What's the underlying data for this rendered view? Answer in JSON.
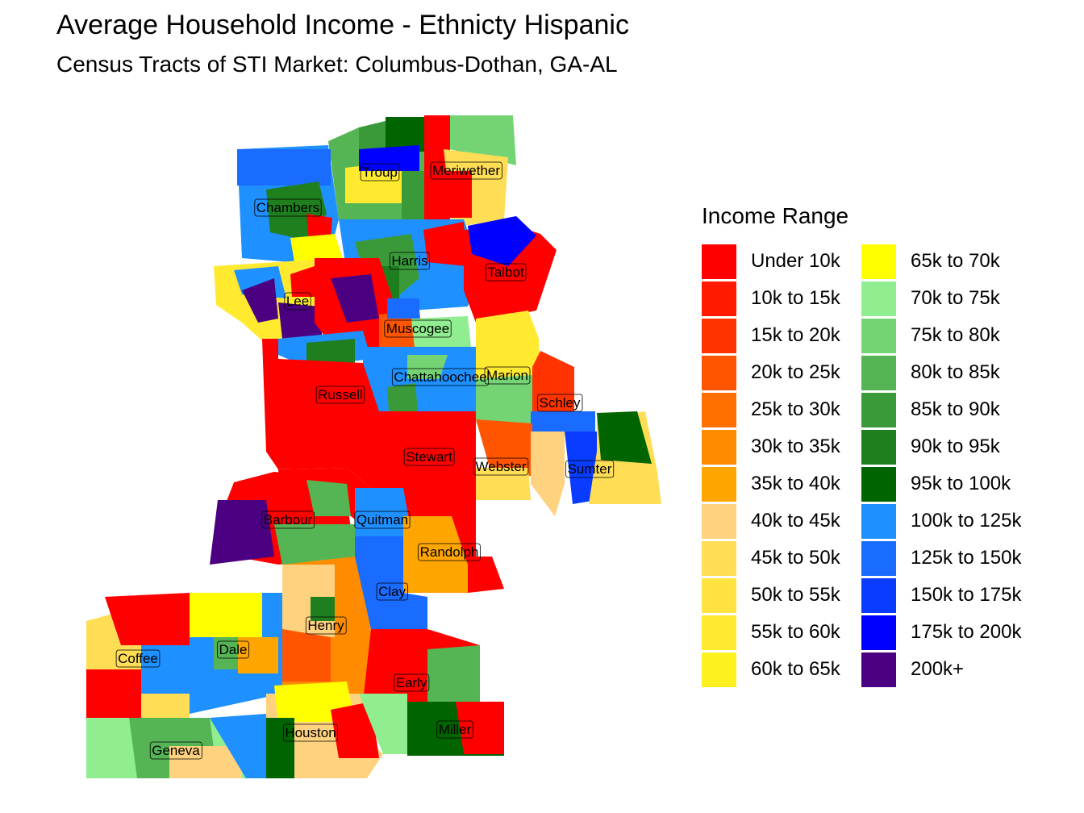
{
  "title": "Average Household Income - Ethnicty Hispanic",
  "subtitle": "Census Tracts of STI Market: Columbus-Dothan,  GA-AL",
  "legend": {
    "title": "Income Range",
    "items": [
      {
        "label": "Under 10k",
        "color": "#ff0000"
      },
      {
        "label": "10k to 15k",
        "color": "#ff1a00"
      },
      {
        "label": "15k to 20k",
        "color": "#ff3300"
      },
      {
        "label": "20k to 25k",
        "color": "#ff5500"
      },
      {
        "label": "25k to 30k",
        "color": "#ff7000"
      },
      {
        "label": "30k to 35k",
        "color": "#ff8c00"
      },
      {
        "label": "35k to 40k",
        "color": "#ffa500"
      },
      {
        "label": "40k to 45k",
        "color": "#ffd280"
      },
      {
        "label": "45k to 50k",
        "color": "#ffdd55"
      },
      {
        "label": "50k to 55k",
        "color": "#ffe340"
      },
      {
        "label": "55k to 60k",
        "color": "#ffea30"
      },
      {
        "label": "60k to 65k",
        "color": "#fff020"
      },
      {
        "label": "65k to 70k",
        "color": "#ffff00"
      },
      {
        "label": "70k to 75k",
        "color": "#90ee90"
      },
      {
        "label": "75k to 80k",
        "color": "#74d474"
      },
      {
        "label": "80k to 85k",
        "color": "#55b555"
      },
      {
        "label": "85k to 90k",
        "color": "#3a9a3a"
      },
      {
        "label": "90k to 95k",
        "color": "#1f7f1f"
      },
      {
        "label": "95k to 100k",
        "color": "#006400"
      },
      {
        "label": "100k to 125k",
        "color": "#1e90ff"
      },
      {
        "label": "125k to 150k",
        "color": "#1a6bff"
      },
      {
        "label": "150k to 175k",
        "color": "#0a3cff"
      },
      {
        "label": "175k to 200k",
        "color": "#0000ff"
      },
      {
        "label": "200k+",
        "color": "#4b0082"
      }
    ]
  },
  "counties": [
    {
      "name": "Troup"
    },
    {
      "name": "Meriwether"
    },
    {
      "name": "Chambers"
    },
    {
      "name": "Harris"
    },
    {
      "name": "Talbot"
    },
    {
      "name": "Lee"
    },
    {
      "name": "Muscogee"
    },
    {
      "name": "Chattahoochee"
    },
    {
      "name": "Marion"
    },
    {
      "name": "Russell"
    },
    {
      "name": "Schley"
    },
    {
      "name": "Stewart"
    },
    {
      "name": "Webster"
    },
    {
      "name": "Sumter"
    },
    {
      "name": "Barbour"
    },
    {
      "name": "Quitman"
    },
    {
      "name": "Randolph"
    },
    {
      "name": "Clay"
    },
    {
      "name": "Henry"
    },
    {
      "name": "Dale"
    },
    {
      "name": "Coffee"
    },
    {
      "name": "Early"
    },
    {
      "name": "Houston"
    },
    {
      "name": "Miller"
    },
    {
      "name": "Geneva"
    }
  ]
}
